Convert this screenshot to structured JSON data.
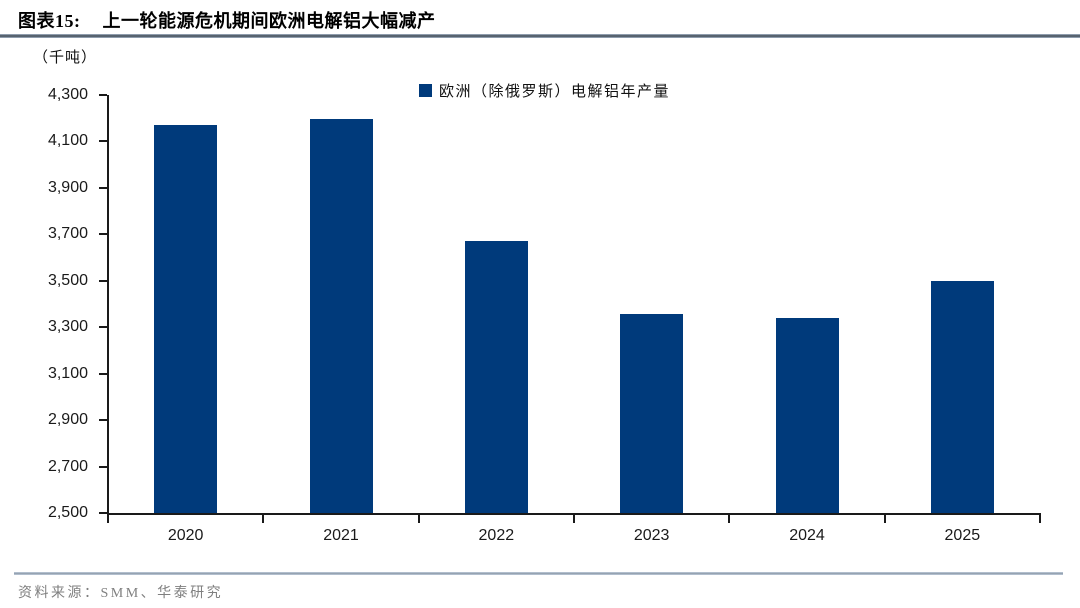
{
  "header": {
    "label": "图表15:",
    "title": "上一轮能源危机期间欧洲电解铝大幅减产"
  },
  "chart_data": {
    "type": "bar",
    "title": "上一轮能源危机期间欧洲电解铝大幅减产",
    "unit_label": "（千吨）",
    "categories": [
      "2020",
      "2021",
      "2022",
      "2023",
      "2024",
      "2025"
    ],
    "series": [
      {
        "name": "欧洲（除俄罗斯）电解铝年产量",
        "values": [
          4170,
          4195,
          3670,
          3355,
          3340,
          3500
        ]
      }
    ],
    "ylabel": "（千吨）",
    "xlabel": "",
    "ylim": [
      2500,
      4300
    ],
    "ytick_step": 200,
    "ytick_labels": [
      "4,300",
      "4,100",
      "3,900",
      "3,700",
      "3,500",
      "3,300",
      "3,100",
      "2,900",
      "2,700",
      "2,500"
    ],
    "grid": false,
    "legend_position": "top-center",
    "bar_color": "#003A7B"
  },
  "legend": {
    "label": "欧洲（除俄罗斯）电解铝年产量"
  },
  "footer": {
    "source": "资料来源：SMM、华泰研究"
  }
}
